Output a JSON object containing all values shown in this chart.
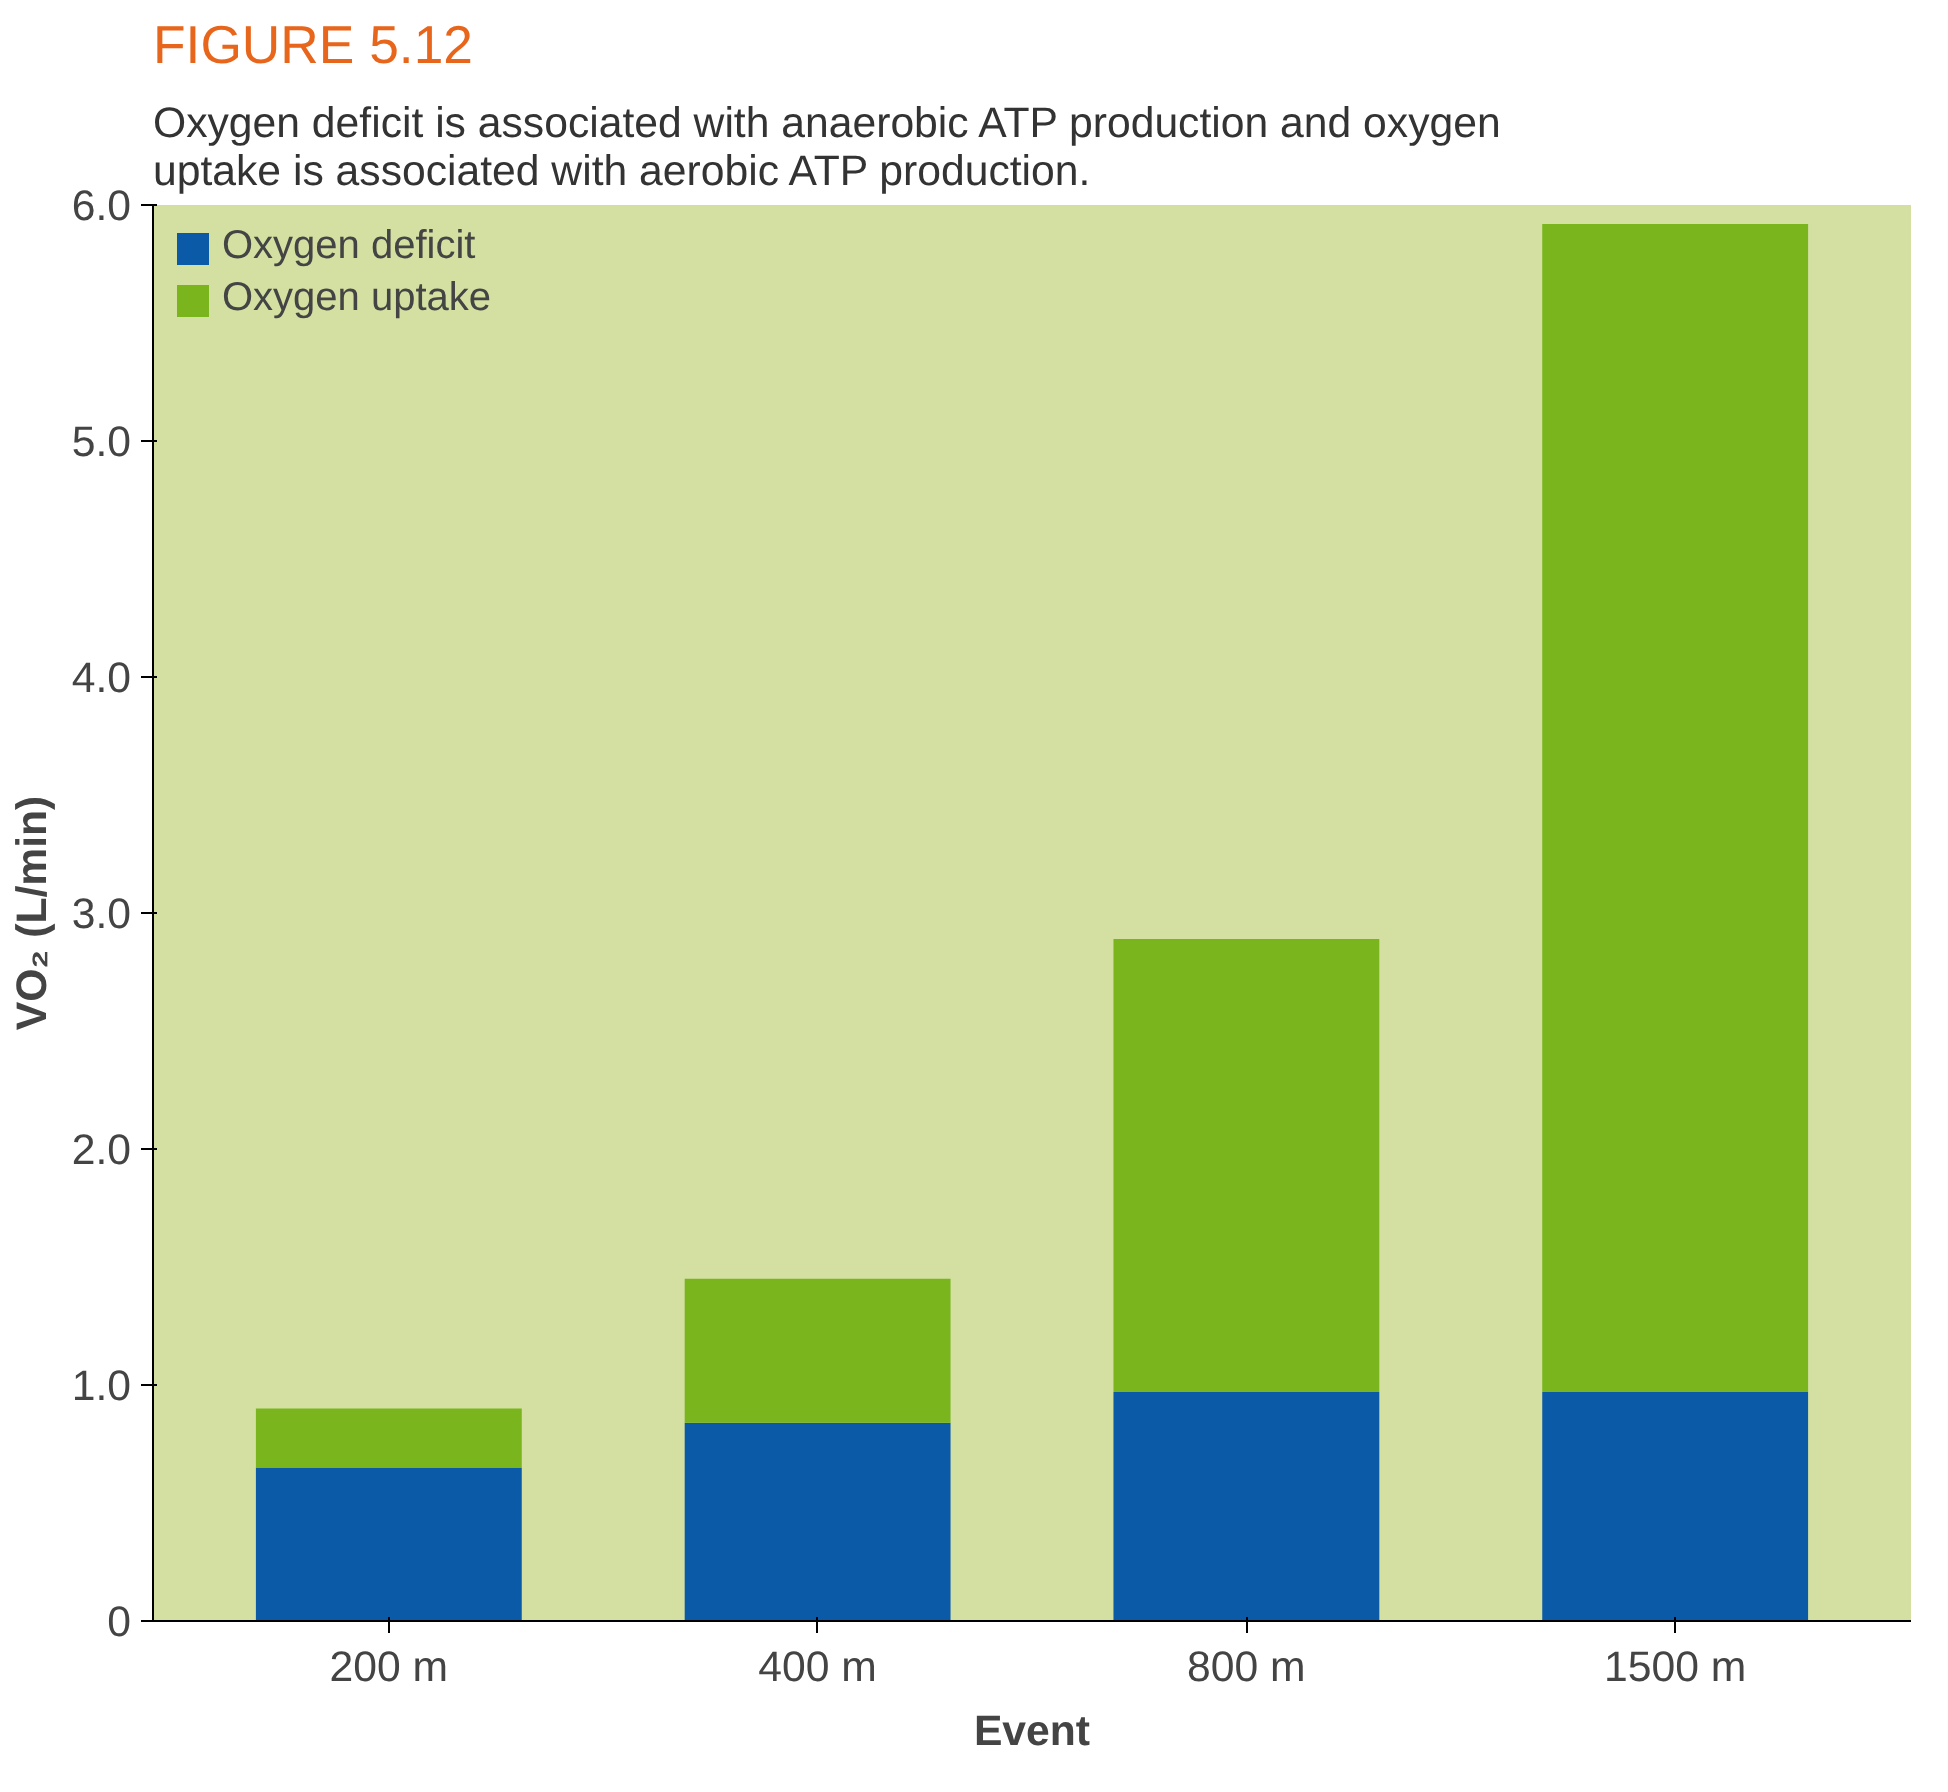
{
  "chart_data": {
    "type": "bar",
    "title": "FIGURE 5.12",
    "subtitle": "Oxygen deficit is associated with anaerobic ATP production and oxygen uptake is associated with aerobic ATP production.",
    "xlabel": "Event",
    "ylabel": "VO₂ (L/min)",
    "categories": [
      "200 m",
      "400 m",
      "800 m",
      "1500 m"
    ],
    "stacked": true,
    "series": [
      {
        "name": "Oxygen deficit",
        "color": "#0a5aa8",
        "values": [
          0.65,
          0.84,
          0.97,
          0.97
        ]
      },
      {
        "name": "Oxygen uptake",
        "color": "#7ab51d",
        "values": [
          0.25,
          0.61,
          1.92,
          4.95
        ]
      }
    ],
    "ylim": [
      0,
      6
    ],
    "yticks": [
      {
        "value": 0,
        "label": "0"
      },
      {
        "value": 1,
        "label": "1.0"
      },
      {
        "value": 2,
        "label": "2.0"
      },
      {
        "value": 3,
        "label": "3.0"
      },
      {
        "value": 4,
        "label": "4.0"
      },
      {
        "value": 5,
        "label": "5.0"
      },
      {
        "value": 6,
        "label": "6.0"
      }
    ],
    "grid": false,
    "legend": "top left"
  }
}
